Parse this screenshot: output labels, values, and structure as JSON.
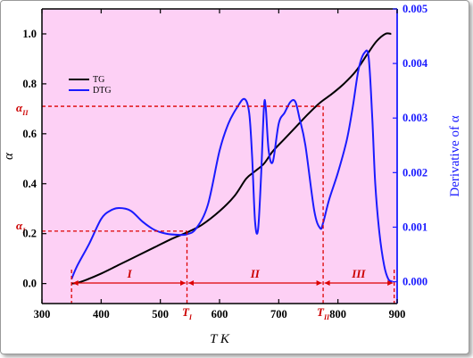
{
  "chart_data": {
    "type": "line",
    "xlabel": "T K",
    "ylabel_left": "α",
    "ylabel_right": "Derivative of α",
    "xlim": [
      300,
      900
    ],
    "ylim_left": [
      -0.08,
      1.1
    ],
    "ylim_right": [
      -0.0004,
      0.005
    ],
    "x_ticks": [
      "300",
      "400",
      "500",
      "600",
      "700",
      "800",
      "900"
    ],
    "y_left_ticks": [
      "0.0",
      "0.2",
      "0.4",
      "0.6",
      "0.8",
      "1.0"
    ],
    "y_right_ticks": [
      "0.000",
      "0.001",
      "0.002",
      "0.003",
      "0.004",
      "0.005"
    ],
    "background_color": "#fdd0f5",
    "legend_position": "top-left",
    "series": [
      {
        "name": "TG",
        "axis": "left",
        "color": "#000000",
        "x": [
          350,
          360,
          375,
          400,
          430,
          460,
          490,
          520,
          545,
          570,
          600,
          625,
          645,
          660,
          675,
          690,
          710,
          730,
          750,
          770,
          790,
          810,
          830,
          850,
          865,
          880,
          890
        ],
        "y": [
          0.0,
          0.003,
          0.015,
          0.04,
          0.075,
          0.11,
          0.145,
          0.18,
          0.205,
          0.235,
          0.29,
          0.35,
          0.42,
          0.45,
          0.48,
          0.53,
          0.58,
          0.63,
          0.68,
          0.725,
          0.76,
          0.8,
          0.85,
          0.92,
          0.97,
          1.0,
          1.0
        ]
      },
      {
        "name": "DTG",
        "axis": "right",
        "color": "#1a1aff",
        "x": [
          350,
          360,
          380,
          400,
          415,
          430,
          450,
          470,
          490,
          510,
          530,
          545,
          560,
          580,
          600,
          615,
          630,
          642,
          650,
          655,
          660,
          665,
          670,
          675,
          678,
          683,
          690,
          700,
          710,
          720,
          728,
          735,
          745,
          760,
          770,
          775,
          785,
          800,
          815,
          825,
          835,
          845,
          852,
          858,
          863,
          870,
          878,
          885,
          892
        ],
        "y": [
          5e-05,
          0.0003,
          0.0007,
          0.00115,
          0.0013,
          0.00135,
          0.0013,
          0.0011,
          0.00095,
          0.00088,
          0.00086,
          0.00087,
          0.00097,
          0.0014,
          0.0024,
          0.0029,
          0.0032,
          0.00335,
          0.0031,
          0.0023,
          0.0011,
          0.00095,
          0.0019,
          0.0032,
          0.0032,
          0.0024,
          0.0022,
          0.0029,
          0.0031,
          0.0033,
          0.0033,
          0.003,
          0.0025,
          0.0013,
          0.00098,
          0.00108,
          0.0015,
          0.002,
          0.0026,
          0.0032,
          0.0039,
          0.0042,
          0.0041,
          0.003,
          0.0018,
          0.0009,
          0.0003,
          5e-05,
          0.0
        ]
      }
    ],
    "annotations": {
      "alpha_I": {
        "label": "α",
        "sub": "I",
        "value": 0.21
      },
      "alpha_II": {
        "label": "α",
        "sub": "II",
        "value": 0.71
      },
      "T_I": {
        "label": "T",
        "sub": "I",
        "value": 545
      },
      "T_II": {
        "label": "T",
        "sub": "II",
        "value": 775
      },
      "region_start": 350,
      "region_end": 895,
      "regions": [
        {
          "label": "I",
          "center": 448
        },
        {
          "label": "II",
          "center": 660
        },
        {
          "label": "III",
          "center": 835
        }
      ]
    }
  }
}
